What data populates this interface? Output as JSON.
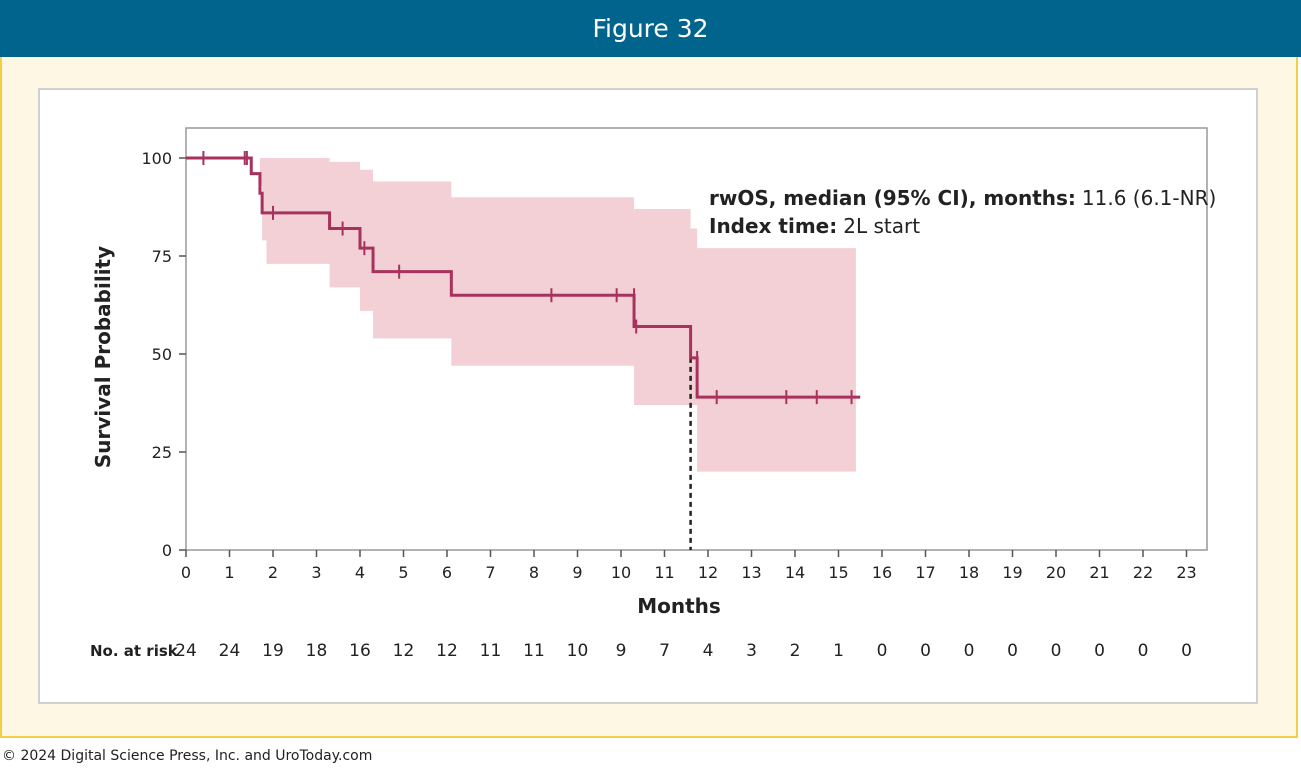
{
  "header": {
    "title": "Figure 32"
  },
  "footer": {
    "copyright": "© 2024 Digital Science Press, Inc. and UroToday.com"
  },
  "colors": {
    "header_bg": "#00648c",
    "frame_border": "#f3cf43",
    "frame_bg": "#fdf7e3",
    "curve": "#a8325e",
    "ci_band": "#f1cbd0"
  },
  "annotation": {
    "line1_bold": "rwOS, median (95% CI), months:",
    "line1_value": "11.6 (6.1-NR)",
    "line2_bold": "Index time:",
    "line2_value": "2L start"
  },
  "chart_data": {
    "type": "line",
    "xlabel": "Months",
    "ylabel": "Survival Probability",
    "xlim": [
      0,
      23.5
    ],
    "ylim": [
      0,
      108
    ],
    "x_ticks": [
      "0",
      "1",
      "2",
      "3",
      "4",
      "5",
      "6",
      "7",
      "8",
      "9",
      "10",
      "11",
      "12",
      "13",
      "14",
      "15",
      "16",
      "17",
      "18",
      "19",
      "20",
      "21",
      "22",
      "23"
    ],
    "y_ticks": [
      "0",
      "25",
      "50",
      "75",
      "100"
    ],
    "grid": false,
    "series": [
      {
        "step_x": [
          0,
          1.5,
          1.7,
          1.75,
          1.85,
          3.3,
          4.0,
          4.3,
          6.1,
          10.3,
          11.6,
          11.75,
          15.4
        ],
        "step_y": [
          100,
          96,
          91,
          86,
          86,
          82,
          77,
          71,
          65,
          57,
          49,
          39,
          39
        ],
        "censor_x": [
          0.4,
          1.35,
          1.4,
          2.0,
          3.6,
          4.1,
          4.9,
          8.4,
          9.9,
          10.3,
          10.35,
          11.75,
          12.2,
          13.8,
          14.5,
          15.3
        ],
        "censor_y": [
          100,
          100,
          100,
          86,
          82,
          77,
          71,
          65,
          65,
          65,
          57,
          49,
          39,
          39,
          39,
          39
        ]
      }
    ],
    "ci_band": {
      "step_x": [
        1.7,
        1.75,
        1.85,
        3.3,
        4.0,
        4.3,
        6.1,
        10.3,
        11.6,
        11.75,
        15.4
      ],
      "lower": [
        93,
        79,
        73,
        67,
        61,
        54,
        47,
        37,
        37,
        20,
        20
      ],
      "upper": [
        100,
        100,
        100,
        99,
        97,
        94,
        90,
        87,
        82,
        77,
        77
      ]
    },
    "median_line": {
      "x": 11.6,
      "y": 49
    },
    "risk_table": {
      "label": "No. at risk",
      "values": [
        "24",
        "24",
        "19",
        "18",
        "16",
        "12",
        "12",
        "11",
        "11",
        "10",
        "9",
        "7",
        "4",
        "3",
        "2",
        "1",
        "0",
        "0",
        "0",
        "0",
        "0",
        "0",
        "0",
        "0"
      ]
    }
  }
}
